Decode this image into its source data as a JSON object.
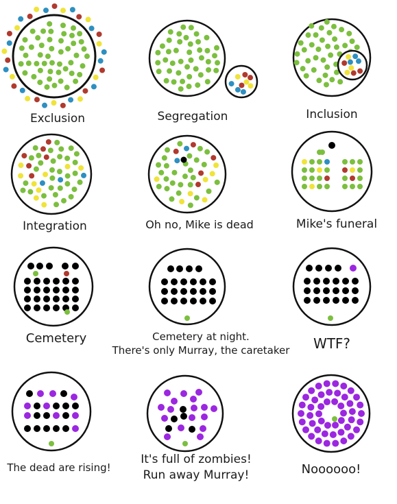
{
  "colors": {
    "green": "#7cbf3f",
    "red": "#b03a2e",
    "blue": "#2e8fc0",
    "yellow": "#f0e33a",
    "black": "#000000",
    "purple": "#9b27e0",
    "ring": "#111111"
  },
  "panels": [
    {
      "id": "exclusion",
      "caption": [
        "Exclusion"
      ]
    },
    {
      "id": "segregation",
      "caption": [
        "Segregation"
      ]
    },
    {
      "id": "inclusion",
      "caption": [
        "Inclusion"
      ]
    },
    {
      "id": "integration",
      "caption": [
        "Integration"
      ]
    },
    {
      "id": "mike-dead",
      "caption": [
        "Oh no, Mike is dead"
      ]
    },
    {
      "id": "funeral",
      "caption": [
        "Mike's funeral"
      ]
    },
    {
      "id": "cemetery",
      "caption": [
        "Cemetery"
      ]
    },
    {
      "id": "night",
      "caption": [
        "Cemetery at night.",
        "There's only Murray, the caretaker"
      ]
    },
    {
      "id": "wtf",
      "caption": [
        "WTF?"
      ]
    },
    {
      "id": "rising",
      "caption": [
        "The dead are rising!"
      ]
    },
    {
      "id": "zombies",
      "caption": [
        "It's full of zombies!",
        "Run away Murray!"
      ]
    },
    {
      "id": "nooo",
      "caption": [
        "Noooooo!"
      ]
    }
  ]
}
